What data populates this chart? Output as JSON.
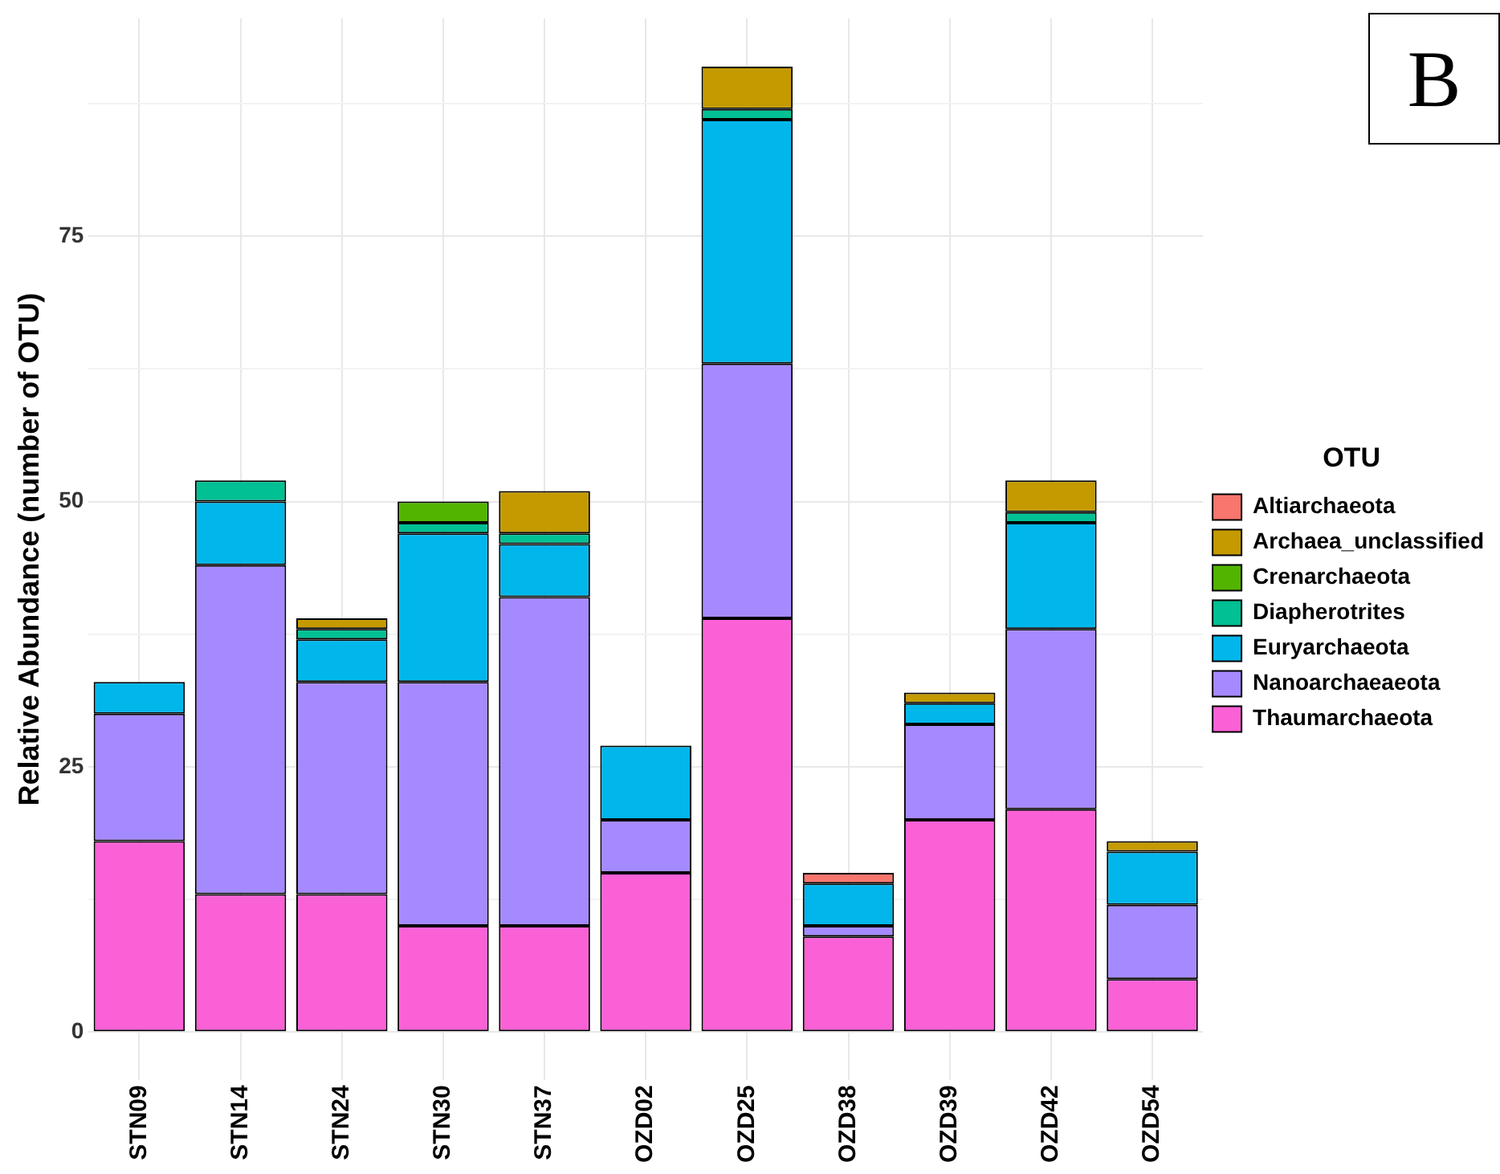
{
  "chart_data": {
    "type": "bar",
    "stacked": true,
    "ylabel": "Relative Abundance (number of OTU)",
    "legend_title": "OTU",
    "legend": "right",
    "grid": true,
    "annotations": [
      "B"
    ],
    "categories": [
      "STN09",
      "STN14",
      "STN24",
      "STN30",
      "STN37",
      "OZD02",
      "OZD25",
      "OZD38",
      "OZD39",
      "OZD42",
      "OZD54"
    ],
    "ylim": [
      -4.55,
      95.55
    ],
    "yticks": [
      0,
      {
        "value": 12.5,
        "label": null
      },
      25,
      {
        "value": 37.5,
        "label": null
      },
      50,
      {
        "value": 62.5,
        "label": null
      },
      75,
      {
        "value": 87.5,
        "label": null
      }
    ],
    "series": [
      {
        "name": "Thaumarchaeota",
        "color": "#fb61d7",
        "values": [
          18,
          13,
          13,
          10,
          10,
          15,
          39,
          9,
          20,
          21,
          5
        ]
      },
      {
        "name": "Nanoarchaeaeota",
        "color": "#a58aff",
        "values": [
          12,
          31,
          20,
          23,
          31,
          5,
          24,
          1,
          9,
          17,
          7
        ]
      },
      {
        "name": "Euryarchaeota",
        "color": "#00b6eb",
        "values": [
          3,
          6,
          4,
          14,
          5,
          7,
          23,
          4,
          2,
          10,
          5
        ]
      },
      {
        "name": "Diapherotrites",
        "color": "#00c094",
        "values": [
          null,
          2,
          1,
          1,
          1,
          null,
          1,
          null,
          null,
          1,
          null
        ]
      },
      {
        "name": "Crenarchaeota",
        "color": "#53b400",
        "values": [
          null,
          null,
          null,
          2,
          null,
          null,
          null,
          null,
          null,
          null,
          null
        ]
      },
      {
        "name": "Archaea_unclassified",
        "color": "#c49a00",
        "values": [
          null,
          null,
          1,
          null,
          4,
          null,
          4,
          null,
          1,
          3,
          1
        ]
      },
      {
        "name": "Altiarchaeota",
        "color": "#f8766d",
        "values": [
          null,
          null,
          null,
          null,
          null,
          null,
          null,
          1,
          null,
          null,
          null
        ]
      }
    ]
  }
}
